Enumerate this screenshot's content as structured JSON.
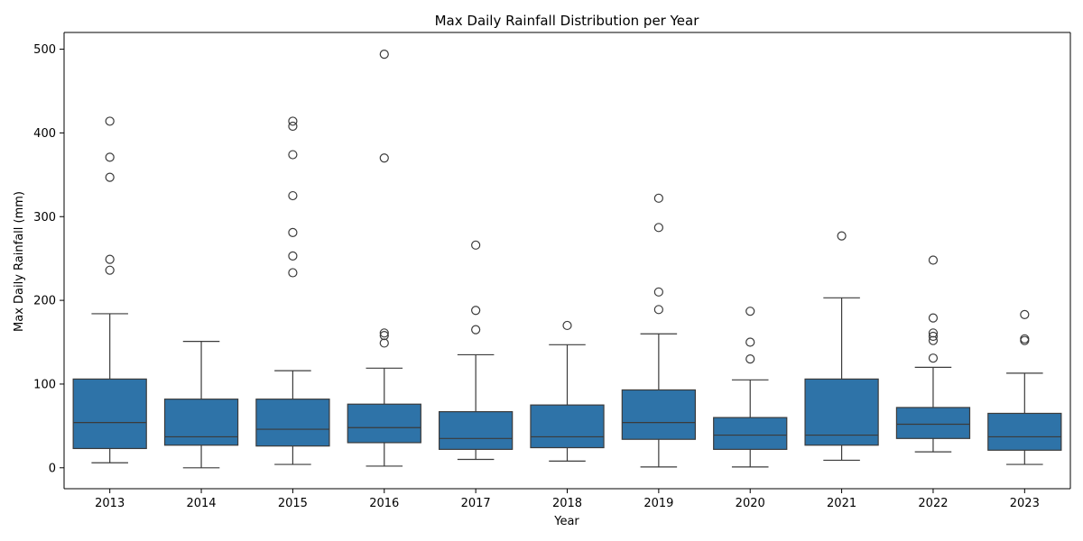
{
  "chart_data": {
    "type": "boxplot",
    "title": "Max Daily Rainfall Distribution per Year",
    "xlabel": "Year",
    "ylabel": "Max Daily Rainfall (mm)",
    "ylim": [
      -25,
      520
    ],
    "yticks": [
      0,
      100,
      200,
      300,
      400,
      500
    ],
    "grid": false,
    "legend": "none",
    "box_color": "#2e73a8",
    "line_color": "#3b3b3b",
    "categories": [
      "2013",
      "2014",
      "2015",
      "2016",
      "2017",
      "2018",
      "2019",
      "2020",
      "2021",
      "2022",
      "2023"
    ],
    "boxes": [
      {
        "year": "2013",
        "whisker_low": 6,
        "q1": 23,
        "median": 54,
        "q3": 106,
        "whisker_high": 184,
        "outliers": [
          414,
          371,
          347,
          249,
          236
        ]
      },
      {
        "year": "2014",
        "whisker_low": 0,
        "q1": 27,
        "median": 37,
        "q3": 82,
        "whisker_high": 151,
        "outliers": []
      },
      {
        "year": "2015",
        "whisker_low": 4,
        "q1": 26,
        "median": 46,
        "q3": 82,
        "whisker_high": 116,
        "outliers": [
          414,
          408,
          374,
          325,
          281,
          253,
          233
        ]
      },
      {
        "year": "2016",
        "whisker_low": 2,
        "q1": 30,
        "median": 48,
        "q3": 76,
        "whisker_high": 119,
        "outliers": [
          494,
          370,
          161,
          158,
          149
        ]
      },
      {
        "year": "2017",
        "whisker_low": 10,
        "q1": 22,
        "median": 35,
        "q3": 67,
        "whisker_high": 135,
        "outliers": [
          266,
          188,
          165
        ]
      },
      {
        "year": "2018",
        "whisker_low": 8,
        "q1": 24,
        "median": 37,
        "q3": 75,
        "whisker_high": 147,
        "outliers": [
          170
        ]
      },
      {
        "year": "2019",
        "whisker_low": 1,
        "q1": 34,
        "median": 54,
        "q3": 93,
        "whisker_high": 160,
        "outliers": [
          322,
          287,
          210,
          189
        ]
      },
      {
        "year": "2020",
        "whisker_low": 1,
        "q1": 22,
        "median": 39,
        "q3": 60,
        "whisker_high": 105,
        "outliers": [
          187,
          150,
          130
        ]
      },
      {
        "year": "2021",
        "whisker_low": 9,
        "q1": 27,
        "median": 39,
        "q3": 106,
        "whisker_high": 203,
        "outliers": [
          277
        ]
      },
      {
        "year": "2022",
        "whisker_low": 19,
        "q1": 35,
        "median": 52,
        "q3": 72,
        "whisker_high": 120,
        "outliers": [
          248,
          179,
          161,
          157,
          152,
          131
        ]
      },
      {
        "year": "2023",
        "whisker_low": 4,
        "q1": 21,
        "median": 37,
        "q3": 65,
        "whisker_high": 113,
        "outliers": [
          183,
          154,
          152
        ]
      }
    ]
  }
}
